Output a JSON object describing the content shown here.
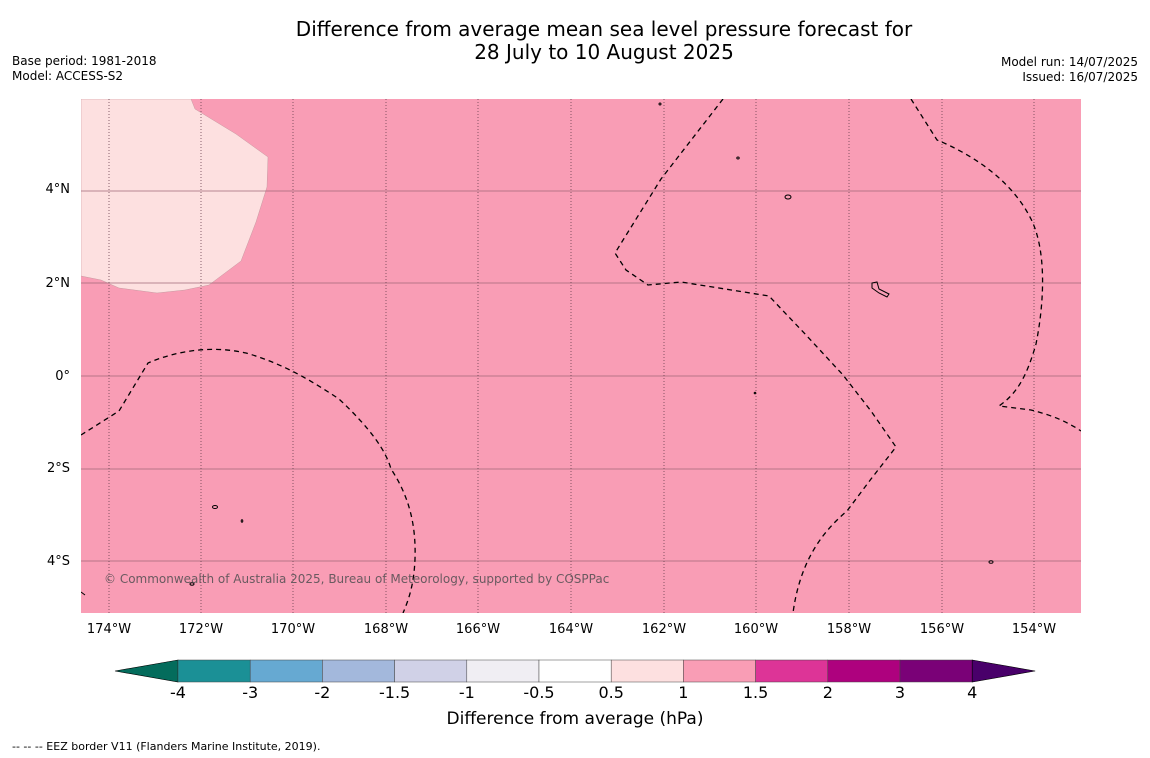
{
  "title_line1": "Difference from average mean sea level pressure forecast for",
  "title_line2": "28 July to 10 August 2025",
  "meta_left": {
    "base_period": "Base period: 1981-2018",
    "model": "Model: ACCESS-S2"
  },
  "meta_right": {
    "model_run": "Model run: 14/07/2025",
    "issued": "Issued: 16/07/2025"
  },
  "map": {
    "lat_labels": [
      "4°N",
      "2°N",
      "0°",
      "2°S",
      "4°S"
    ],
    "lon_labels": [
      "174°W",
      "172°W",
      "170°W",
      "168°W",
      "166°W",
      "164°W",
      "162°W",
      "160°W",
      "158°W",
      "156°W",
      "154°W"
    ],
    "copyright": "© Commonwealth of Australia 2025, Bureau of Meteorology, supported by COSPPac",
    "background_color": "#f99db5",
    "low_anomaly_color": "#fde0e0"
  },
  "colorbar": {
    "ticks": [
      "-4",
      "-3",
      "-2",
      "-1.5",
      "-1",
      "-0.5",
      "0.5",
      "1",
      "1.5",
      "2",
      "3",
      "4"
    ],
    "colors": [
      "#046c5c",
      "#1b9096",
      "#66a9d2",
      "#a3b8dc",
      "#d0d1e7",
      "#f0eef3",
      "#ffffff",
      "#fde0e0",
      "#f99db5",
      "#dd3497",
      "#ae017e",
      "#7a0177",
      "#49006a"
    ],
    "label": "Difference from average (hPa)"
  },
  "footnote": "--  --  -- EEZ border V11 (Flanders Marine Institute, 2019)."
}
